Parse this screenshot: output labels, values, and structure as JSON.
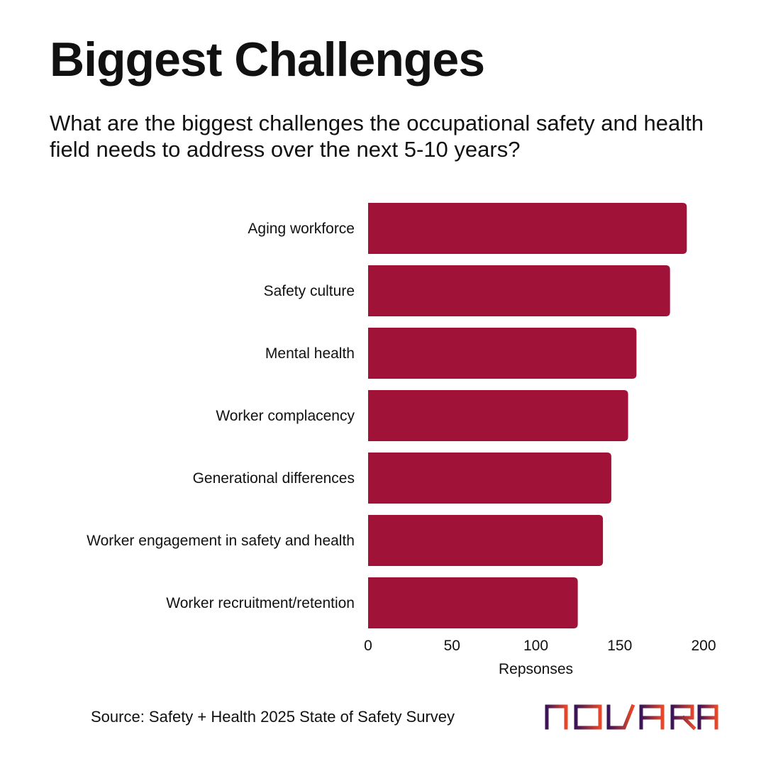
{
  "header": {
    "title": "Biggest Challenges",
    "subtitle": "What are the biggest challenges the occupational safety and health field needs to address over the next 5-10 years?"
  },
  "footer": {
    "source": "Source: Safety + Health 2025 State of Safety Survey",
    "logo_text": "NOVARA"
  },
  "colors": {
    "bar": "#a01238",
    "text": "#111111",
    "logo_gradient_start": "#3b1457",
    "logo_gradient_end": "#e8472a"
  },
  "chart_data": {
    "type": "bar",
    "orientation": "horizontal",
    "categories": [
      "Aging workforce",
      "Safety culture",
      "Mental health",
      "Worker complacency",
      "Generational differences",
      "Worker engagement in safety and health",
      "Worker recruitment/retention"
    ],
    "values": [
      190,
      180,
      160,
      155,
      145,
      140,
      125
    ],
    "xlabel": "Repsonses",
    "ylabel": "",
    "xlim": [
      0,
      200
    ],
    "xticks": [
      0,
      50,
      100,
      150,
      200
    ],
    "xtick_labels": [
      "0",
      "50",
      "100",
      "150",
      "200"
    ],
    "grid": false,
    "legend": "none"
  }
}
